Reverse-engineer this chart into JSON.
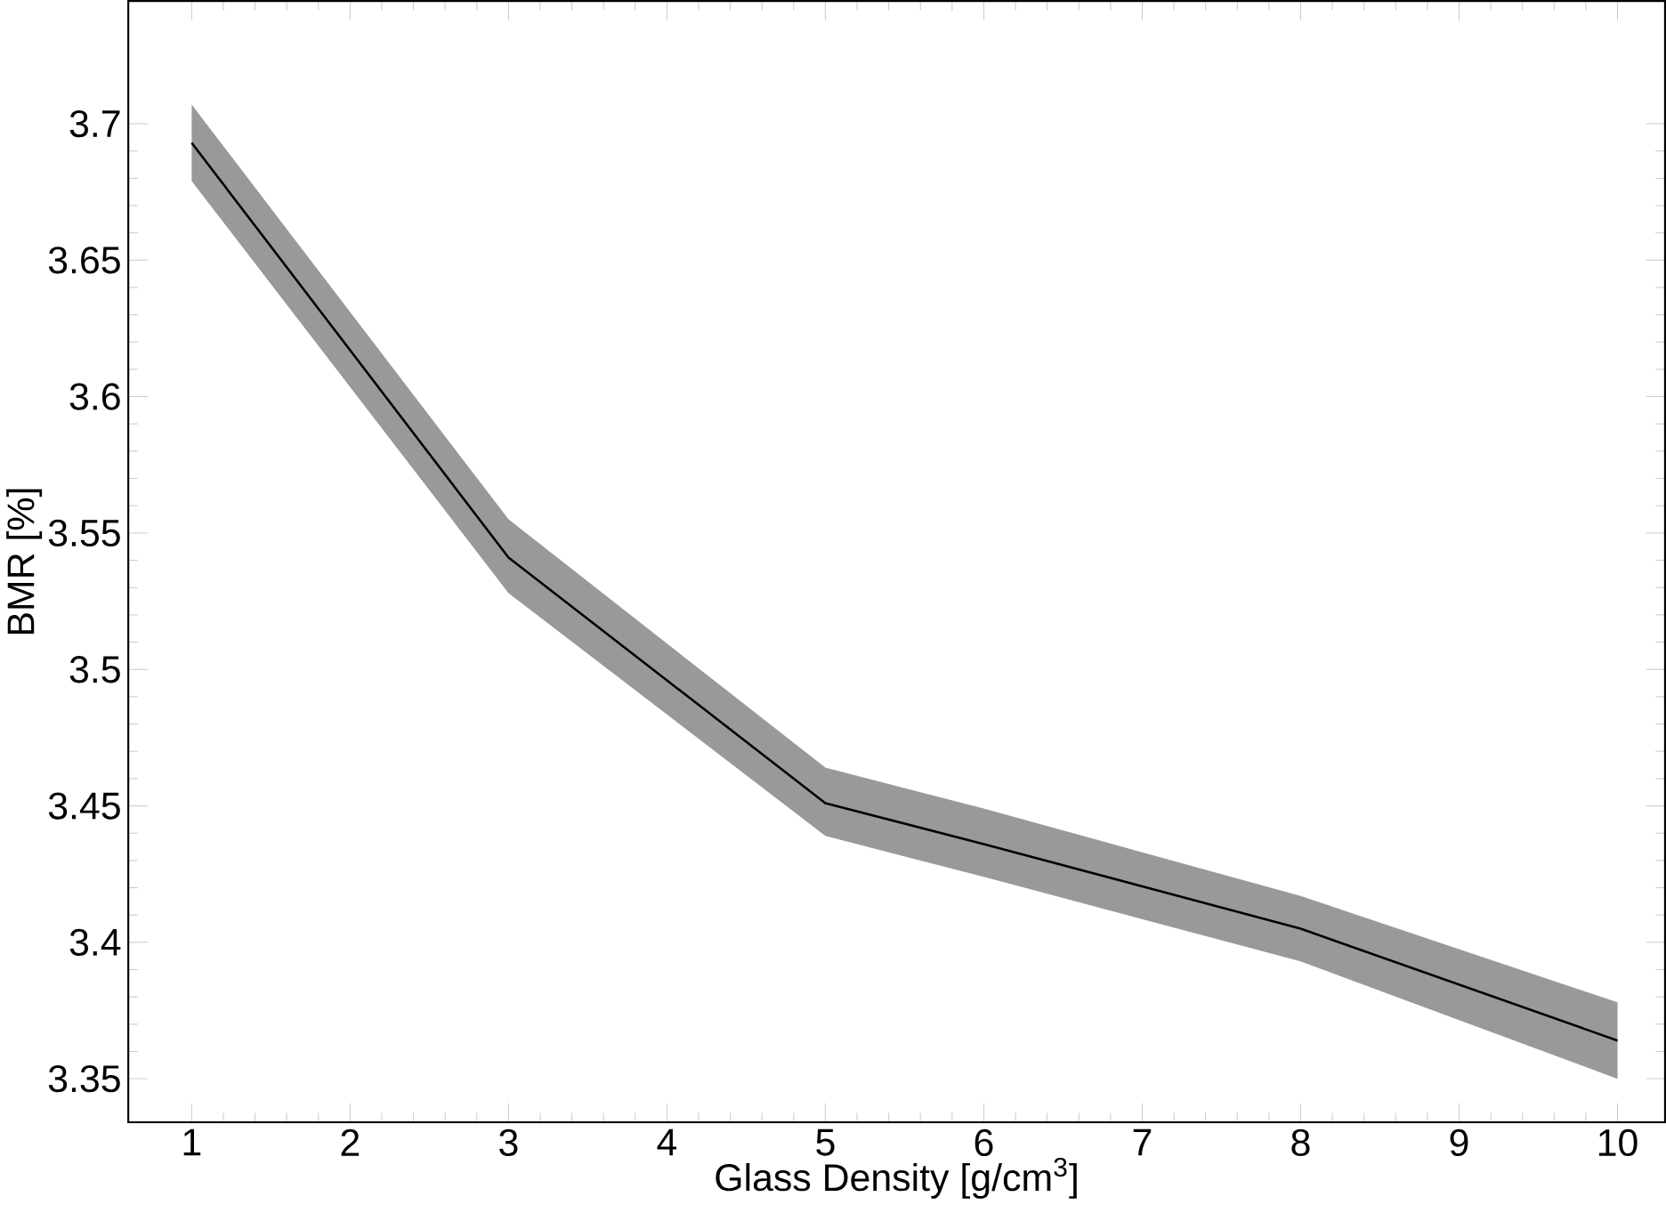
{
  "chart_data": {
    "type": "line",
    "xlabel": "Glass Density [g/cm$^{3}$]",
    "ylabel": "BMR [%]",
    "x": [
      1,
      3,
      5,
      6,
      8,
      10
    ],
    "series": [
      {
        "color": "#000000",
        "values": [
          3.693,
          3.541,
          3.451,
          3.436,
          3.405,
          3.364
        ],
        "lower": [
          3.679,
          3.528,
          3.439,
          3.424,
          3.393,
          3.35
        ],
        "upper": [
          3.707,
          3.555,
          3.464,
          3.449,
          3.417,
          3.378
        ]
      }
    ],
    "xlim": [
      0.6,
      10.3
    ],
    "xticks": [
      1,
      2,
      3,
      4,
      5,
      6,
      7,
      8,
      9,
      10
    ],
    "ylim": [
      3.334,
      3.745
    ],
    "yticks": [
      3.35,
      3.4,
      3.45,
      3.5,
      3.55,
      3.6,
      3.65,
      3.7
    ],
    "grid": false,
    "marker": "none",
    "line_style": "solid"
  }
}
